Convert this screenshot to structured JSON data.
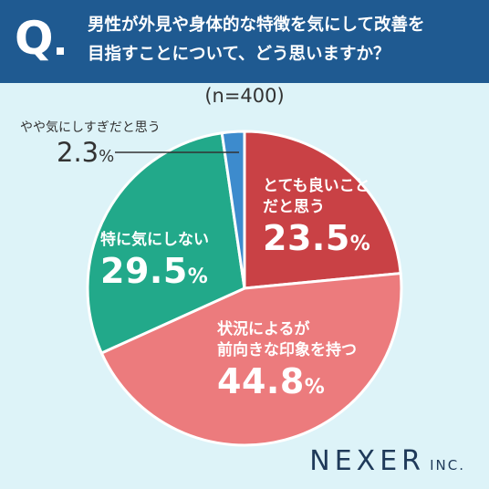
{
  "header": {
    "q_mark": "Q",
    "question_line1": "男性が外見や身体的な特徴を気にして改善を",
    "question_line2": "目指すことについて、どう思いますか？"
  },
  "sample": "(n=400)",
  "brand": {
    "name": "NEXER",
    "suffix": "INC."
  },
  "colors": {
    "header_bg": "#1f5a91",
    "background": "#ddf3f8",
    "very_good": "#c94145",
    "depends": "#ec7b7d",
    "dont_care": "#22a98a",
    "too_much": "#3d8bcd"
  },
  "chart_data": {
    "type": "pie",
    "unit": "%",
    "start": "12 o'clock",
    "direction": "clockwise",
    "slices": [
      {
        "label_lines": [
          "とても良いこと",
          "だと思う"
        ],
        "value": 23.5,
        "value_text": "23.5",
        "color": "#c94145"
      },
      {
        "label_lines": [
          "状況によるが",
          "前向きな印象を持つ"
        ],
        "value": 44.8,
        "value_text": "44.8",
        "color": "#ec7b7d"
      },
      {
        "label_lines": [
          "特に気にしない"
        ],
        "value": 29.5,
        "value_text": "29.5",
        "color": "#22a98a"
      },
      {
        "label_lines": [
          "やや気にしすぎだと思う"
        ],
        "value": 2.3,
        "value_text": "2.3",
        "color": "#3d8bcd"
      }
    ]
  }
}
